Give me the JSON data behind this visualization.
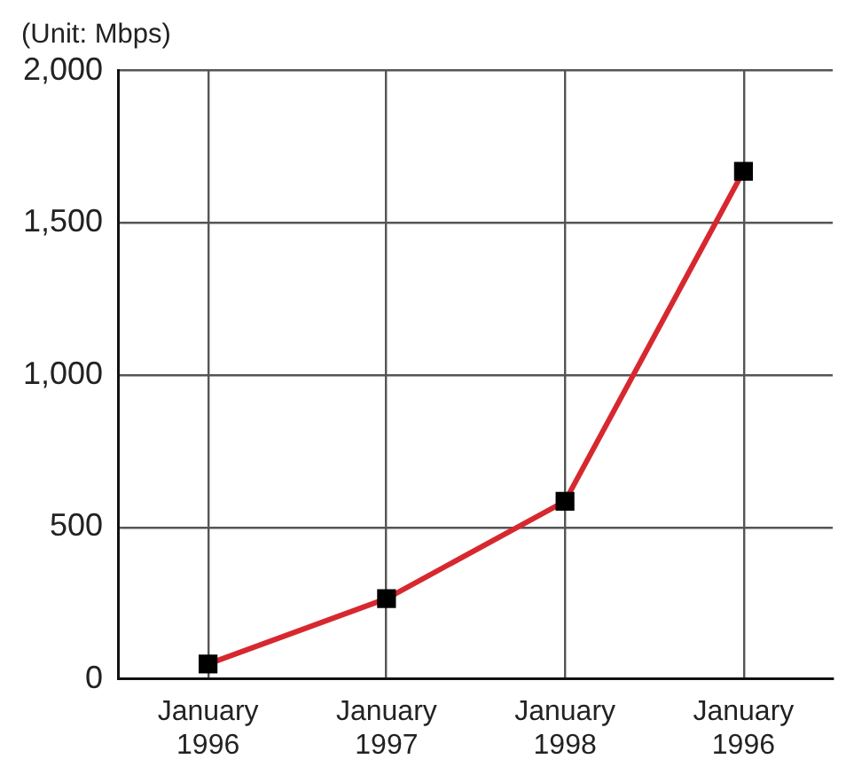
{
  "chart_data": {
    "type": "line",
    "ylabel": "(Unit: Mbps)",
    "categories": [
      "January 1996",
      "January 1997",
      "January 1998",
      "January 1996"
    ],
    "series": [
      {
        "color": "#d7282f",
        "colors": [
          "#000000",
          "#000000",
          "#000000",
          "#000000"
        ],
        "values": [
          50,
          265,
          585,
          1670
        ]
      }
    ],
    "ylim": [
      0,
      2000
    ],
    "yticks": [
      0,
      500,
      {
        "value": 1000,
        "label": "1,000"
      },
      {
        "value": 1500,
        "label": "1,500"
      },
      {
        "value": 2000,
        "label": "2,000"
      }
    ],
    "grid": true,
    "marker": "square",
    "line_style": "solid"
  }
}
